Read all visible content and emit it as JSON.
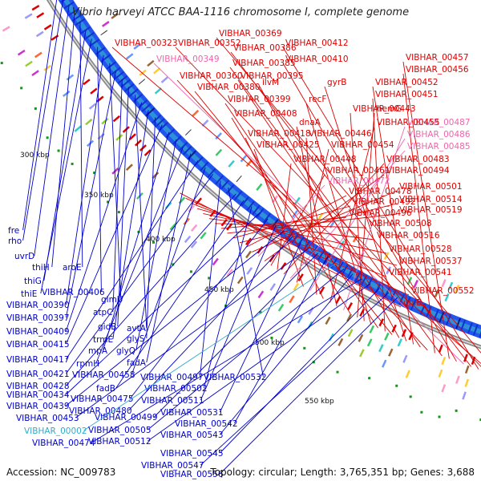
{
  "title": "Vibrio harveyi ATCC BAA-1116 chromosome I, complete genome",
  "accession": "Accession: NC_009783",
  "topology": "Topology: circular; Length: 3,765,351 bp; Genes: 3,688",
  "colors": {
    "forward": "#dd0000",
    "reverse": "#0000cc",
    "pseudo": "#ee66aa",
    "reverse_alt": "#33aacc",
    "backbone": "#888888"
  },
  "ticks": [
    "300 kbp",
    "350 kbp",
    "400 kbp",
    "450 kbp",
    "500 kbp",
    "550 kbp"
  ],
  "labels_right": [
    "VIBHAR_00369",
    "VIBHAR_00323",
    "VIBHAR_00352",
    "VIBHAR_00412",
    "VIBHAR_00386",
    "VIBHAR_00349",
    "VIBHAR_00410",
    "VIBHAR_00457",
    "VIBHAR_00385",
    "VIBHAR_00456",
    "VIBHAR_00360",
    "VIBHAR_00395",
    "VIBHAR_00452",
    "gyrB",
    "ilvM",
    "VIBHAR_00380",
    "VIBHAR_00451",
    "VIBHAR_00399",
    "recF",
    "VIBHAR_00443",
    "hemG",
    "VIBHAR_00408",
    "VIBHAR_00487",
    "dnaA",
    "VIBHAR_00455",
    "VIBHAR_00418",
    "VIBHAR_00446",
    "VIBHAR_00486",
    "VIBHAR_00425",
    "VIBHAR_00454",
    "VIBHAR_00485",
    "VIBHAR_00483",
    "VIBHAR_00448",
    "VIBHAR_00461",
    "VIBHAR_00494",
    "VIBHAR_00472",
    "VIBHAR_00501",
    "VIBHAR_00478",
    "VIBHAR_00514",
    "VIBHAR_00492",
    "VIBHAR_00519",
    "VIBHAR_00496",
    "VIBHAR_00508",
    "VIBHAR_00516",
    "VIBHAR_00528",
    "VIBHAR_00537",
    "VIBHAR_00541",
    "VIBHAR_00552",
    "ubiE"
  ],
  "labels_left": [
    "fre",
    "rho",
    "uvrD",
    "thiH",
    "aroE",
    "thiG",
    "thiE",
    "VIBHAR_00406",
    "VIBHAR_00390",
    "glmU",
    "VIBHAR_00397",
    "atpC",
    "gidB",
    "avtA",
    "VIBHAR_00409",
    "trmE",
    "glyS",
    "VIBHAR_00415",
    "mpA",
    "glyQ",
    "rpmH",
    "fadA",
    "VIBHAR_00417",
    "VIBHAR_00458",
    "VIBHAR_00421",
    "VIBHAR_00497",
    "VIBHAR_00532",
    "VIBHAR_00428",
    "fadB",
    "VIBHAR_00502",
    "VIBHAR_00434",
    "VIBHAR_00475",
    "VIBHAR_00511",
    "VIBHAR_00439",
    "VIBHAR_00480",
    "VIBHAR_00531",
    "VIBHAR_00453",
    "VIBHAR_00499",
    "VIBHAR_00542",
    "VIBHAR_00002",
    "VIBHAR_00505",
    "VIBHAR_00543",
    "VIBHAR_00474",
    "VIBHAR_00512",
    "VIBHAR_00545",
    "VIBHAR_00547",
    "VIBHAR_00556"
  ]
}
